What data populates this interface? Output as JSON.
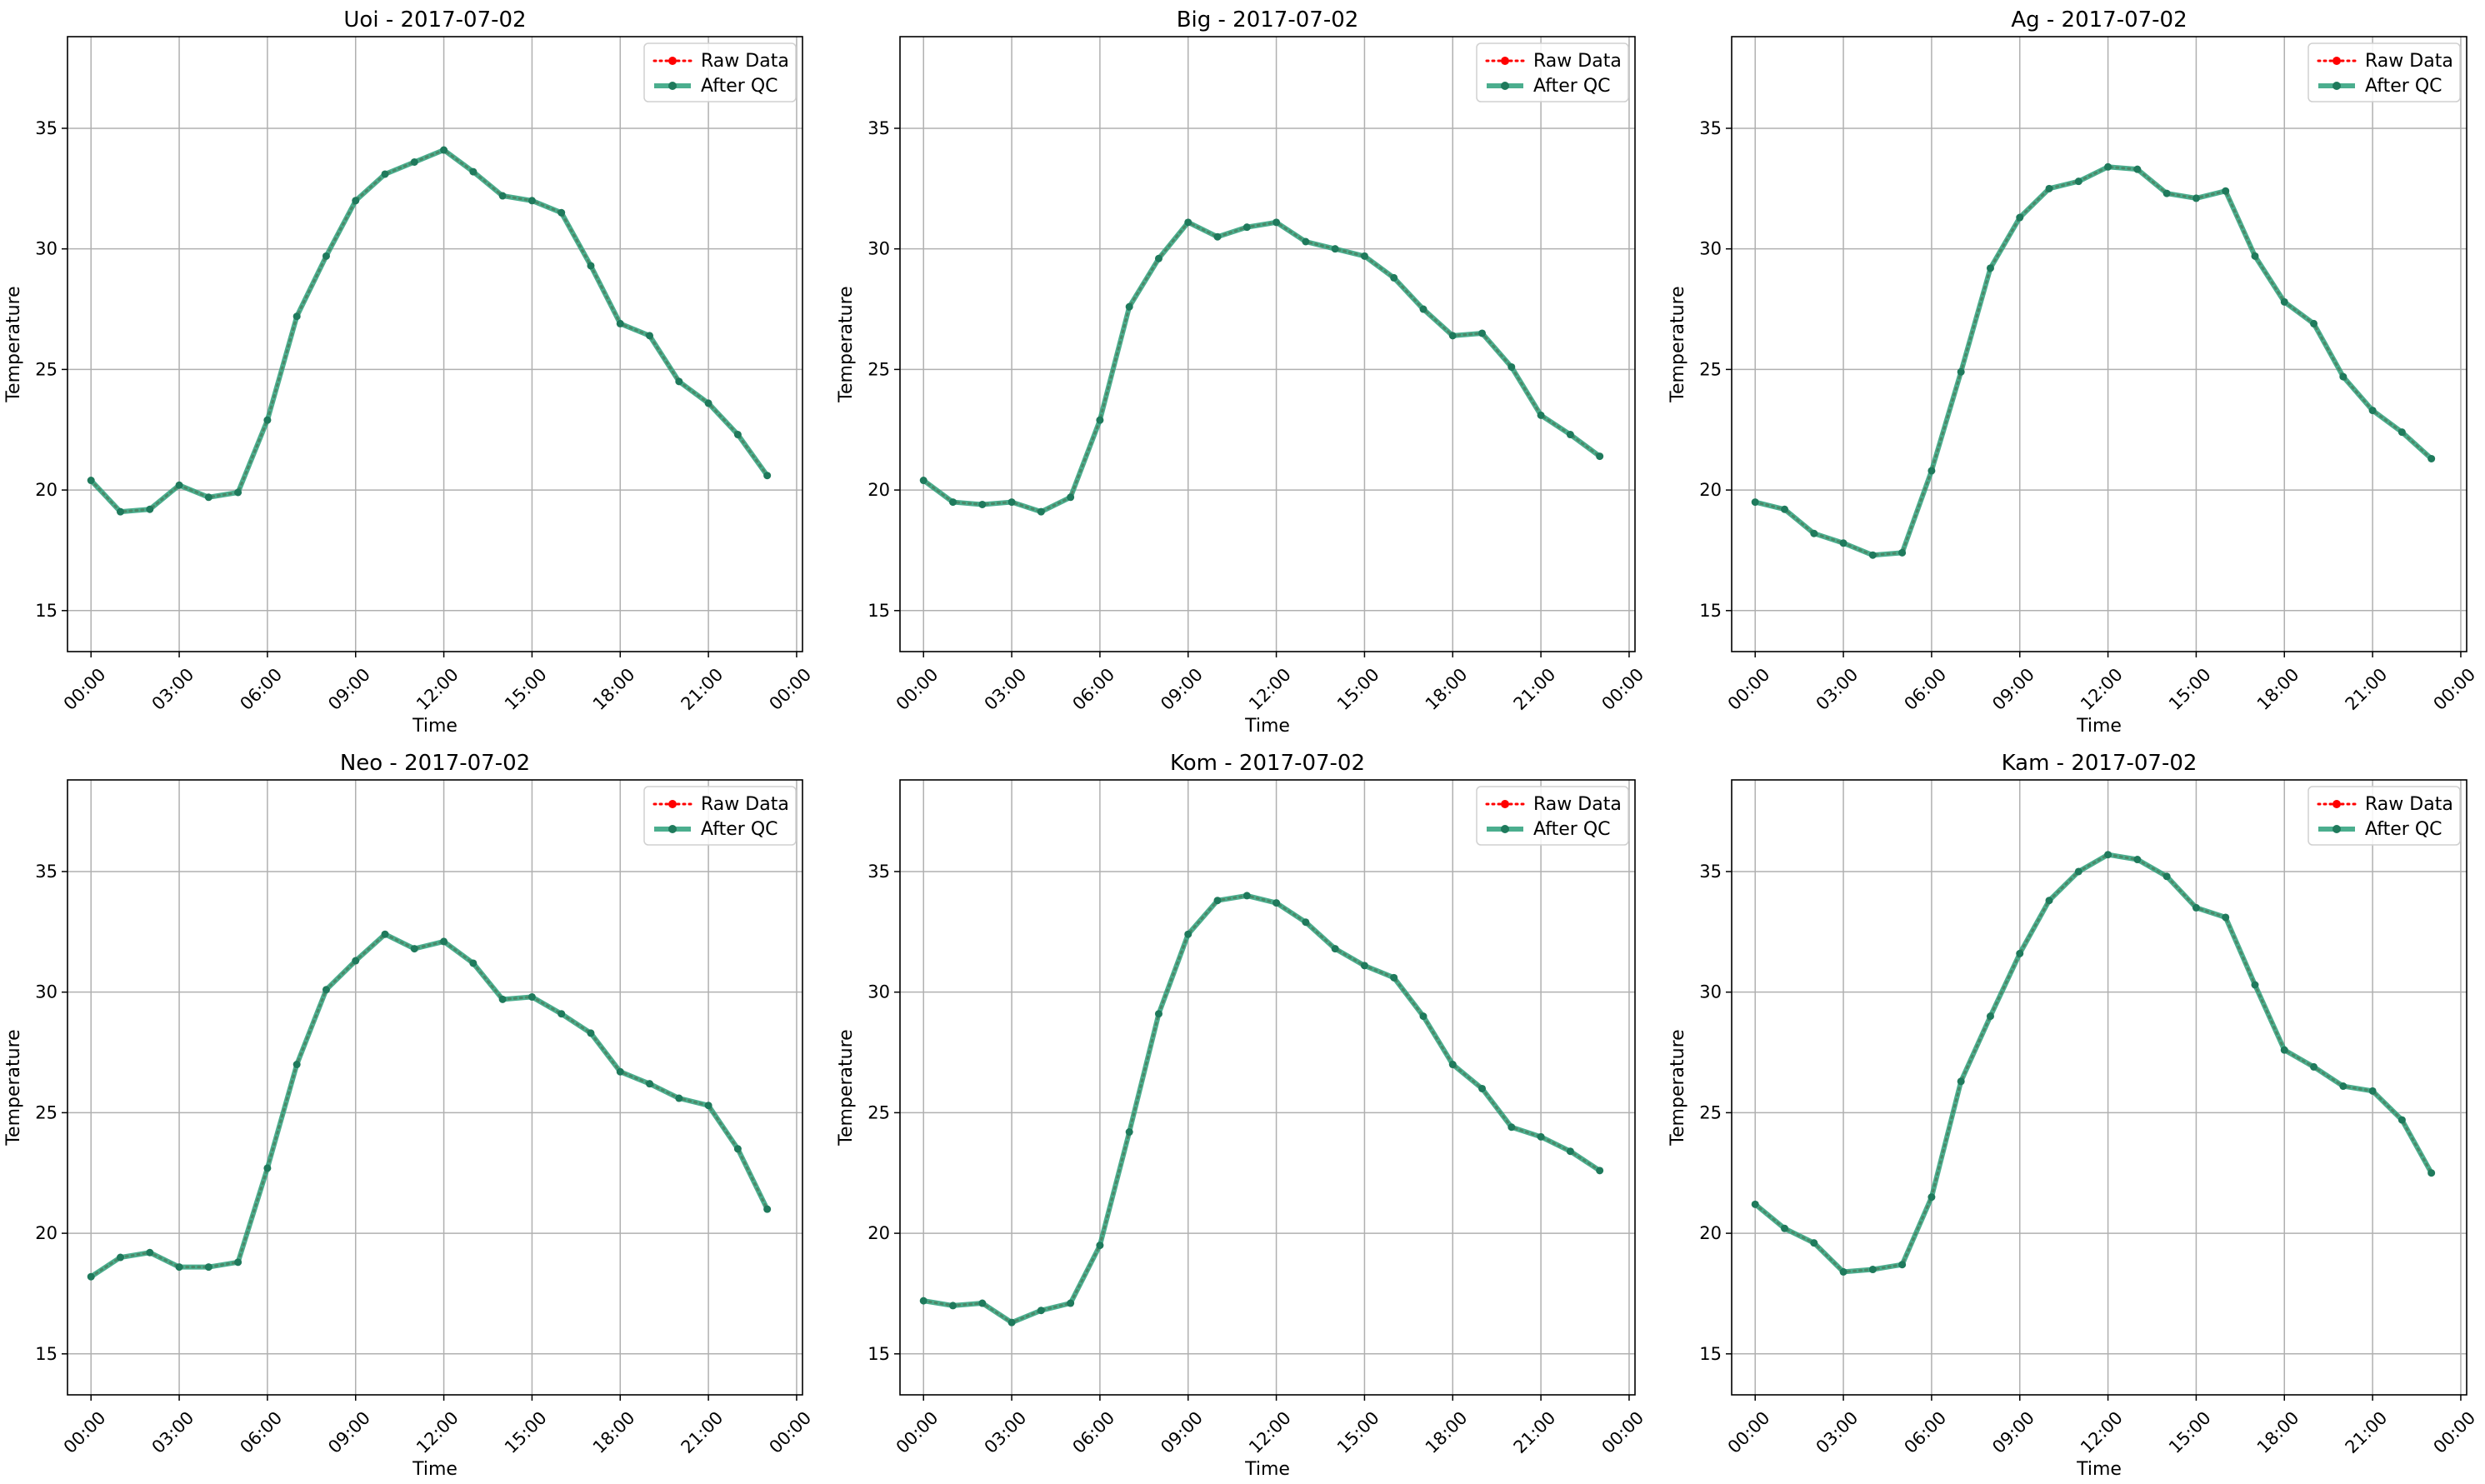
{
  "figure": {
    "panels": [
      "Uoi - 2017-07-02",
      "Big - 2017-07-02",
      "Ag - 2017-07-02",
      "Neo - 2017-07-02",
      "Kom - 2017-07-02",
      "Kam - 2017-07-02"
    ]
  },
  "colors": {
    "raw": "#ff0000",
    "qc": "#2ca07a",
    "qc_marker": "#1f7a5c",
    "grid": "#b0b0b0",
    "axes": "#000000"
  },
  "chart_data": [
    {
      "type": "line",
      "title": "Uoi - 2017-07-02",
      "xlabel": "Time",
      "ylabel": "Temperature",
      "x": [
        "00:00",
        "01:00",
        "02:00",
        "03:00",
        "04:00",
        "05:00",
        "06:00",
        "07:00",
        "08:00",
        "09:00",
        "10:00",
        "11:00",
        "12:00",
        "13:00",
        "14:00",
        "15:00",
        "16:00",
        "17:00",
        "18:00",
        "19:00",
        "20:00",
        "21:00",
        "22:00",
        "23:00"
      ],
      "xticks": [
        "00:00",
        "03:00",
        "06:00",
        "09:00",
        "12:00",
        "15:00",
        "18:00",
        "21:00",
        "00:00"
      ],
      "yticks": [
        15,
        20,
        25,
        30,
        35
      ],
      "ylim": [
        13.3,
        38.8
      ],
      "grid": true,
      "legend_position": "top-right",
      "series": [
        {
          "name": "Raw Data",
          "style": "dotted",
          "values": [
            20.4,
            19.1,
            19.2,
            20.2,
            19.7,
            19.9,
            22.9,
            27.2,
            29.7,
            32.0,
            33.1,
            33.6,
            34.1,
            33.2,
            32.2,
            32.0,
            31.5,
            29.3,
            26.9,
            26.4,
            24.5,
            23.6,
            22.3,
            20.6
          ]
        },
        {
          "name": "After QC",
          "style": "solid",
          "values": [
            20.4,
            19.1,
            19.2,
            20.2,
            19.7,
            19.9,
            22.9,
            27.2,
            29.7,
            32.0,
            33.1,
            33.6,
            34.1,
            33.2,
            32.2,
            32.0,
            31.5,
            29.3,
            26.9,
            26.4,
            24.5,
            23.6,
            22.3,
            20.6
          ]
        }
      ]
    },
    {
      "type": "line",
      "title": "Big - 2017-07-02",
      "xlabel": "Time",
      "ylabel": "Temperature",
      "x": [
        "00:00",
        "01:00",
        "02:00",
        "03:00",
        "04:00",
        "05:00",
        "06:00",
        "07:00",
        "08:00",
        "09:00",
        "10:00",
        "11:00",
        "12:00",
        "13:00",
        "14:00",
        "15:00",
        "16:00",
        "17:00",
        "18:00",
        "19:00",
        "20:00",
        "21:00",
        "22:00",
        "23:00"
      ],
      "xticks": [
        "00:00",
        "03:00",
        "06:00",
        "09:00",
        "12:00",
        "15:00",
        "18:00",
        "21:00",
        "00:00"
      ],
      "yticks": [
        15,
        20,
        25,
        30,
        35
      ],
      "ylim": [
        13.3,
        38.8
      ],
      "grid": true,
      "legend_position": "top-right",
      "series": [
        {
          "name": "Raw Data",
          "style": "dotted",
          "values": [
            20.4,
            19.5,
            19.4,
            19.5,
            19.1,
            19.7,
            22.9,
            27.6,
            29.6,
            31.1,
            30.5,
            30.9,
            31.1,
            30.3,
            30.0,
            29.7,
            28.8,
            27.5,
            26.4,
            26.5,
            25.1,
            23.1,
            22.3,
            21.4
          ]
        },
        {
          "name": "After QC",
          "style": "solid",
          "values": [
            20.4,
            19.5,
            19.4,
            19.5,
            19.1,
            19.7,
            22.9,
            27.6,
            29.6,
            31.1,
            30.5,
            30.9,
            31.1,
            30.3,
            30.0,
            29.7,
            28.8,
            27.5,
            26.4,
            26.5,
            25.1,
            23.1,
            22.3,
            21.4
          ]
        }
      ]
    },
    {
      "type": "line",
      "title": "Ag - 2017-07-02",
      "xlabel": "Time",
      "ylabel": "Temperature",
      "x": [
        "00:00",
        "01:00",
        "02:00",
        "03:00",
        "04:00",
        "05:00",
        "06:00",
        "07:00",
        "08:00",
        "09:00",
        "10:00",
        "11:00",
        "12:00",
        "13:00",
        "14:00",
        "15:00",
        "16:00",
        "17:00",
        "18:00",
        "19:00",
        "20:00",
        "21:00",
        "22:00",
        "23:00"
      ],
      "xticks": [
        "00:00",
        "03:00",
        "06:00",
        "09:00",
        "12:00",
        "15:00",
        "18:00",
        "21:00",
        "00:00"
      ],
      "yticks": [
        15,
        20,
        25,
        30,
        35
      ],
      "ylim": [
        13.3,
        38.8
      ],
      "grid": true,
      "legend_position": "top-right",
      "series": [
        {
          "name": "Raw Data",
          "style": "dotted",
          "values": [
            19.5,
            19.2,
            18.2,
            17.8,
            17.3,
            17.4,
            20.8,
            24.9,
            29.2,
            31.3,
            32.5,
            32.8,
            33.4,
            33.3,
            32.3,
            32.1,
            32.4,
            29.7,
            27.8,
            26.9,
            24.7,
            23.3,
            22.4,
            21.3
          ]
        },
        {
          "name": "After QC",
          "style": "solid",
          "values": [
            19.5,
            19.2,
            18.2,
            17.8,
            17.3,
            17.4,
            20.8,
            24.9,
            29.2,
            31.3,
            32.5,
            32.8,
            33.4,
            33.3,
            32.3,
            32.1,
            32.4,
            29.7,
            27.8,
            26.9,
            24.7,
            23.3,
            22.4,
            21.3
          ]
        }
      ]
    },
    {
      "type": "line",
      "title": "Neo - 2017-07-02",
      "xlabel": "Time",
      "ylabel": "Temperature",
      "x": [
        "00:00",
        "01:00",
        "02:00",
        "03:00",
        "04:00",
        "05:00",
        "06:00",
        "07:00",
        "08:00",
        "09:00",
        "10:00",
        "11:00",
        "12:00",
        "13:00",
        "14:00",
        "15:00",
        "16:00",
        "17:00",
        "18:00",
        "19:00",
        "20:00",
        "21:00",
        "22:00",
        "23:00"
      ],
      "xticks": [
        "00:00",
        "03:00",
        "06:00",
        "09:00",
        "12:00",
        "15:00",
        "18:00",
        "21:00",
        "00:00"
      ],
      "yticks": [
        15,
        20,
        25,
        30,
        35
      ],
      "ylim": [
        13.3,
        38.8
      ],
      "grid": true,
      "legend_position": "top-right",
      "series": [
        {
          "name": "Raw Data",
          "style": "dotted",
          "values": [
            18.2,
            19.0,
            19.2,
            18.6,
            18.6,
            18.8,
            22.7,
            27.0,
            30.1,
            31.3,
            32.4,
            31.8,
            32.1,
            31.2,
            29.7,
            29.8,
            29.1,
            28.3,
            26.7,
            26.2,
            25.6,
            25.3,
            23.5,
            21.0
          ]
        },
        {
          "name": "After QC",
          "style": "solid",
          "values": [
            18.2,
            19.0,
            19.2,
            18.6,
            18.6,
            18.8,
            22.7,
            27.0,
            30.1,
            31.3,
            32.4,
            31.8,
            32.1,
            31.2,
            29.7,
            29.8,
            29.1,
            28.3,
            26.7,
            26.2,
            25.6,
            25.3,
            23.5,
            21.0
          ]
        }
      ]
    },
    {
      "type": "line",
      "title": "Kom - 2017-07-02",
      "xlabel": "Time",
      "ylabel": "Temperature",
      "x": [
        "00:00",
        "01:00",
        "02:00",
        "03:00",
        "04:00",
        "05:00",
        "06:00",
        "07:00",
        "08:00",
        "09:00",
        "10:00",
        "11:00",
        "12:00",
        "13:00",
        "14:00",
        "15:00",
        "16:00",
        "17:00",
        "18:00",
        "19:00",
        "20:00",
        "21:00",
        "22:00",
        "23:00"
      ],
      "xticks": [
        "00:00",
        "03:00",
        "06:00",
        "09:00",
        "12:00",
        "15:00",
        "18:00",
        "21:00",
        "00:00"
      ],
      "yticks": [
        15,
        20,
        25,
        30,
        35
      ],
      "ylim": [
        13.3,
        38.8
      ],
      "grid": true,
      "legend_position": "top-right",
      "series": [
        {
          "name": "Raw Data",
          "style": "dotted",
          "values": [
            17.2,
            17.0,
            17.1,
            16.3,
            16.8,
            17.1,
            19.5,
            24.2,
            29.1,
            32.4,
            33.8,
            34.0,
            33.7,
            32.9,
            31.8,
            31.1,
            30.6,
            29.0,
            27.0,
            26.0,
            24.4,
            24.0,
            23.4,
            22.6
          ]
        },
        {
          "name": "After QC",
          "style": "solid",
          "values": [
            17.2,
            17.0,
            17.1,
            16.3,
            16.8,
            17.1,
            19.5,
            24.2,
            29.1,
            32.4,
            33.8,
            34.0,
            33.7,
            32.9,
            31.8,
            31.1,
            30.6,
            29.0,
            27.0,
            26.0,
            24.4,
            24.0,
            23.4,
            22.6
          ]
        }
      ]
    },
    {
      "type": "line",
      "title": "Kam - 2017-07-02",
      "xlabel": "Time",
      "ylabel": "Temperature",
      "x": [
        "00:00",
        "01:00",
        "02:00",
        "03:00",
        "04:00",
        "05:00",
        "06:00",
        "07:00",
        "08:00",
        "09:00",
        "10:00",
        "11:00",
        "12:00",
        "13:00",
        "14:00",
        "15:00",
        "16:00",
        "17:00",
        "18:00",
        "19:00",
        "20:00",
        "21:00",
        "22:00",
        "23:00"
      ],
      "xticks": [
        "00:00",
        "03:00",
        "06:00",
        "09:00",
        "12:00",
        "15:00",
        "18:00",
        "21:00",
        "00:00"
      ],
      "yticks": [
        15,
        20,
        25,
        30,
        35
      ],
      "ylim": [
        13.3,
        38.8
      ],
      "grid": true,
      "legend_position": "top-right",
      "series": [
        {
          "name": "Raw Data",
          "style": "dotted",
          "values": [
            21.2,
            20.2,
            19.6,
            18.4,
            18.5,
            18.7,
            21.5,
            26.3,
            29.0,
            31.6,
            33.8,
            35.0,
            35.7,
            35.5,
            34.8,
            33.5,
            33.1,
            30.3,
            27.6,
            26.9,
            26.1,
            25.9,
            24.7,
            22.5
          ]
        },
        {
          "name": "After QC",
          "style": "solid",
          "values": [
            21.2,
            20.2,
            19.6,
            18.4,
            18.5,
            18.7,
            21.5,
            26.3,
            29.0,
            31.6,
            33.8,
            35.0,
            35.7,
            35.5,
            34.8,
            33.5,
            33.1,
            30.3,
            27.6,
            26.9,
            26.1,
            25.9,
            24.7,
            22.5
          ]
        }
      ]
    }
  ]
}
